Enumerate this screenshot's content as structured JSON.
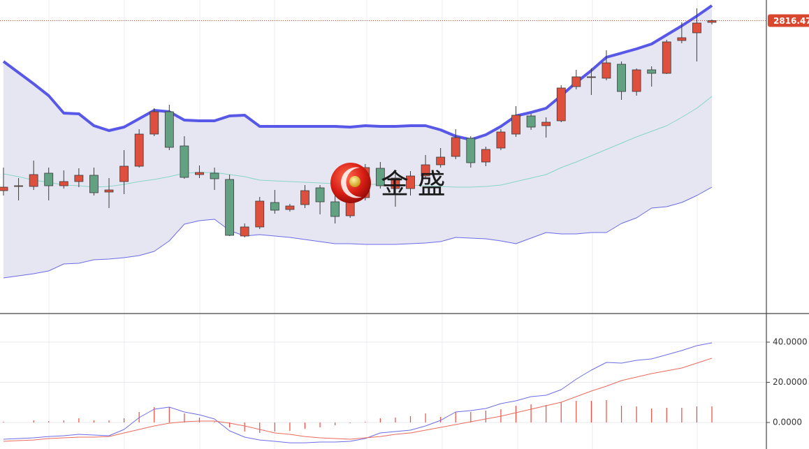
{
  "chart_data": [
    {
      "type": "candlestick",
      "up_color": "#de4f3d",
      "down_color": "#62a283",
      "outline_color": "#3a3a3a",
      "band_fill": "#e6e6f3",
      "ylim": [
        2398,
        2846
      ],
      "last_price": {
        "value": 2816.47,
        "label": "2816.470"
      },
      "last_price_color": "#d9472f",
      "watermark": "金 盛",
      "open": [
        2573,
        2579,
        2579,
        2598,
        2580,
        2586,
        2595,
        2571,
        2586,
        2608,
        2654,
        2686,
        2637,
        2596,
        2598,
        2589,
        2508,
        2521,
        2556,
        2546,
        2553,
        2577,
        2557,
        2537,
        2563,
        2605,
        2576,
        2576,
        2594,
        2610,
        2622,
        2648,
        2614,
        2634,
        2654,
        2680,
        2666,
        2673,
        2722,
        2735,
        2734,
        2754,
        2715,
        2746,
        2741,
        2788,
        2799,
        2814
      ],
      "high": [
        2606,
        2591,
        2616,
        2606,
        2602,
        2605,
        2606,
        2591,
        2631,
        2661,
        2691,
        2696,
        2651,
        2609,
        2606,
        2596,
        2526,
        2564,
        2574,
        2554,
        2581,
        2581,
        2566,
        2606,
        2611,
        2614,
        2601,
        2601,
        2624,
        2634,
        2661,
        2651,
        2636,
        2661,
        2694,
        2683,
        2678,
        2724,
        2746,
        2748,
        2774,
        2758,
        2748,
        2751,
        2789,
        2814,
        2834,
        2818
      ],
      "low": [
        2566,
        2559,
        2574,
        2559,
        2576,
        2578,
        2566,
        2548,
        2568,
        2606,
        2651,
        2631,
        2590,
        2591,
        2574,
        2508,
        2506,
        2518,
        2540,
        2543,
        2548,
        2539,
        2526,
        2534,
        2559,
        2576,
        2550,
        2566,
        2591,
        2606,
        2618,
        2606,
        2608,
        2631,
        2650,
        2660,
        2649,
        2671,
        2718,
        2710,
        2731,
        2703,
        2709,
        2722,
        2740,
        2784,
        2758,
        2811
      ],
      "close": [
        2578,
        2580,
        2596,
        2580,
        2586,
        2595,
        2570,
        2574,
        2608,
        2654,
        2686,
        2635,
        2592,
        2599,
        2590,
        2509,
        2521,
        2558,
        2545,
        2551,
        2573,
        2557,
        2536,
        2561,
        2606,
        2580,
        2591,
        2594,
        2610,
        2621,
        2649,
        2613,
        2632,
        2657,
        2681,
        2664,
        2671,
        2720,
        2736,
        2736,
        2756,
        2715,
        2746,
        2741,
        2786,
        2792,
        2813,
        2816.47
      ],
      "series": [
        {
          "color": "#5858e8",
          "values": [
            2758,
            2742,
            2726,
            2709,
            2684,
            2683,
            2666,
            2659,
            2664,
            2676,
            2688,
            2686,
            2674,
            2673,
            2673,
            2680,
            2681,
            2665,
            2665,
            2665,
            2665,
            2665,
            2665,
            2664,
            2666,
            2665,
            2665,
            2666,
            2666,
            2660,
            2651,
            2646,
            2653,
            2665,
            2680,
            2685,
            2691,
            2709,
            2728,
            2745,
            2764,
            2770,
            2776,
            2783,
            2796,
            2809,
            2823,
            2838
          ]
        },
        {
          "color": "#86d6c4",
          "values": [
            2597,
            2593,
            2588,
            2585,
            2581,
            2580,
            2578,
            2579,
            2582,
            2586,
            2589,
            2593,
            2598,
            2599,
            2599,
            2596,
            2593,
            2588,
            2587,
            2586,
            2585,
            2584,
            2583,
            2583,
            2582,
            2582,
            2581,
            2581,
            2580,
            2579,
            2578,
            2578,
            2579,
            2581,
            2586,
            2591,
            2596,
            2606,
            2614,
            2623,
            2632,
            2641,
            2650,
            2658,
            2666,
            2678,
            2691,
            2708
          ]
        },
        {
          "color": "#6a6ae8",
          "values": [
            2448,
            2451,
            2454,
            2458,
            2468,
            2469,
            2474,
            2475,
            2477,
            2480,
            2486,
            2501,
            2525,
            2530,
            2532,
            2516,
            2508,
            2510,
            2508,
            2506,
            2503,
            2500,
            2497,
            2497,
            2496,
            2496,
            2496,
            2497,
            2498,
            2500,
            2506,
            2505,
            2504,
            2501,
            2497,
            2505,
            2513,
            2511,
            2511,
            2513,
            2513,
            2526,
            2534,
            2548,
            2550,
            2556,
            2566,
            2578
          ]
        }
      ]
    },
    {
      "type": "macd",
      "ylim": [
        -13.2,
        53.9
      ],
      "yticks": [
        {
          "value": 0,
          "label": "0.0000"
        },
        {
          "value": 20,
          "label": "20.0000"
        },
        {
          "value": 40,
          "label": "40.0000"
        }
      ],
      "grid": true,
      "bars": {
        "color": "#ee4a3c",
        "values": [
          0.35,
          0,
          1.04,
          0.7,
          1.04,
          2.09,
          1.04,
          1.04,
          2.09,
          5.22,
          7.65,
          7.65,
          4.52,
          2.43,
          0.35,
          -2.43,
          -4.52,
          -5.22,
          -4.52,
          -4.17,
          -3.13,
          -2.43,
          -1.39,
          -0.35,
          0.35,
          2.09,
          2.43,
          3.13,
          4.52,
          2.78,
          5.22,
          5.22,
          5.91,
          6.61,
          8.35,
          9.04,
          8.7,
          10.09,
          10.78,
          10.78,
          11.13,
          8.35,
          8.0,
          6.96,
          7.3,
          7.3,
          8.0,
          8.0
        ]
      },
      "series": [
        {
          "color": "#6c6ce6",
          "values": [
            -8.35,
            -8.0,
            -7.65,
            -6.96,
            -6.61,
            -5.91,
            -6.26,
            -6.61,
            -3.48,
            2.43,
            6.61,
            7.65,
            5.22,
            3.83,
            1.74,
            -4.17,
            -7.3,
            -8.7,
            -9.39,
            -10.09,
            -10.09,
            -9.74,
            -9.74,
            -9.39,
            -8.0,
            -5.22,
            -4.52,
            -3.83,
            -1.74,
            1.04,
            5.22,
            5.91,
            6.96,
            9.39,
            10.78,
            12.87,
            13.57,
            16.35,
            21.57,
            26.09,
            29.91,
            29.57,
            30.96,
            31.65,
            33.74,
            35.83,
            38.26,
            39.65
          ]
        },
        {
          "color": "#ec6a5c",
          "values": [
            -9.39,
            -9.04,
            -8.7,
            -8.0,
            -7.65,
            -7.3,
            -7.3,
            -6.96,
            -5.22,
            -3.48,
            -1.74,
            -0.35,
            0.35,
            0.7,
            0.7,
            -0.35,
            -1.74,
            -3.48,
            -5.22,
            -5.91,
            -6.96,
            -7.65,
            -8.0,
            -8.35,
            -7.65,
            -6.96,
            -5.91,
            -5.22,
            -3.83,
            -2.43,
            -1.04,
            0.35,
            1.74,
            3.13,
            4.87,
            6.61,
            8.35,
            10.09,
            12.87,
            15.65,
            18.09,
            20.87,
            22.61,
            24.35,
            25.74,
            27.13,
            29.57,
            32.0
          ]
        }
      ]
    }
  ]
}
